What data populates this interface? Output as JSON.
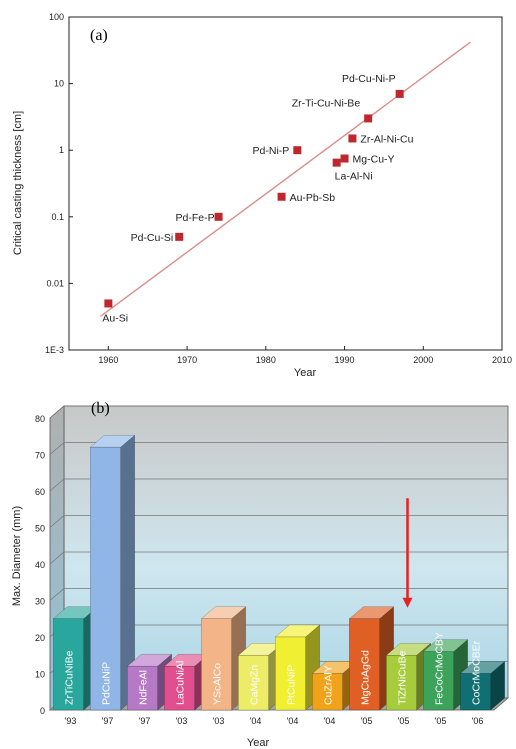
{
  "chart_data": [
    {
      "panel": "(a)",
      "type": "scatter",
      "xlabel": "Year",
      "ylabel": "Critical casting thickness [cm]",
      "xlim": [
        1955,
        2010
      ],
      "ylim": [
        0.001,
        100
      ],
      "yscale": "log",
      "x_ticks": [
        "1960",
        "1970",
        "1980",
        "1990",
        "2000",
        "2010"
      ],
      "y_ticks": [
        "1E-3",
        "0.01",
        "0.1",
        "1",
        "10",
        "100"
      ],
      "series": [
        {
          "points": [
            {
              "label": "Au-Si",
              "x": 1960,
              "y": 0.005
            },
            {
              "label": "Pd-Cu-Si",
              "x": 1969,
              "y": 0.05
            },
            {
              "label": "Pd-Fe-P",
              "x": 1974,
              "y": 0.1
            },
            {
              "label": "Au-Pb-Sb",
              "x": 1982,
              "y": 0.2
            },
            {
              "label": "Pd-Ni-P",
              "x": 1984,
              "y": 1.0
            },
            {
              "label": "La-Al-Ni",
              "x": 1989,
              "y": 0.65
            },
            {
              "label": "Mg-Cu-Y",
              "x": 1990,
              "y": 0.75
            },
            {
              "label": "Zr-Al-Ni-Cu",
              "x": 1991,
              "y": 1.5
            },
            {
              "label": "Zr-Ti-Cu-Ni-Be",
              "x": 1993,
              "y": 3.0
            },
            {
              "label": "Pd-Cu-Ni-P",
              "x": 1997,
              "y": 7.0
            }
          ]
        }
      ],
      "trendline": {
        "x": [
          1959,
          2006
        ],
        "y": [
          0.0032,
          42
        ]
      },
      "colors": {
        "marker": "#c0262d",
        "line": "#d98d8b"
      }
    },
    {
      "panel": "(b)",
      "type": "bar",
      "xlabel": "Year",
      "ylabel": "Max. Diameter (mm)",
      "ylim": [
        0,
        80
      ],
      "y_ticks": [
        "0",
        "10",
        "20",
        "30",
        "40",
        "50",
        "60",
        "70",
        "80"
      ],
      "categories": [
        "'93",
        "'97",
        "'97",
        "'03",
        "'03",
        "'04",
        "'04",
        "'04",
        "'05",
        "'05",
        "'05",
        "'06"
      ],
      "alloys": [
        "ZrTiCuNiBe",
        "PdCuNiP",
        "NdFeAl",
        "LaCuNiAl",
        "YScAlCo",
        "CaMgZn",
        "PtCuNiP",
        "CuZrAlY",
        "MgCuAgGd",
        "TiZrNiCuBe",
        "FeCoCrMoCBY",
        "CoCrMoCBEr"
      ],
      "values": [
        25,
        72,
        12,
        12,
        25,
        15,
        20,
        10,
        25,
        15,
        16,
        10
      ],
      "bar_colors": [
        "#2aa79c",
        "#8fb6e6",
        "#b679c6",
        "#e24f8f",
        "#f3b487",
        "#ecec66",
        "#f1ef32",
        "#f0a21b",
        "#e05f24",
        "#a7cc3b",
        "#3ea35a",
        "#0f6f72"
      ],
      "annotation": {
        "type": "arrow",
        "color": "#e82020",
        "x_category_index": 9,
        "from_y": 58,
        "to_y": 28
      }
    }
  ]
}
